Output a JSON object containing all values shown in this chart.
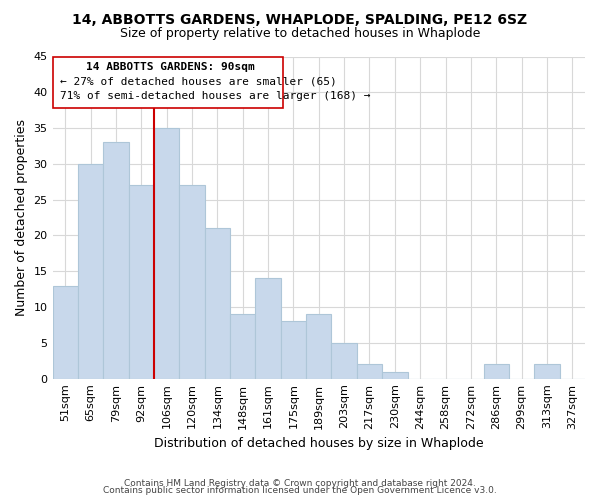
{
  "title": "14, ABBOTTS GARDENS, WHAPLODE, SPALDING, PE12 6SZ",
  "subtitle": "Size of property relative to detached houses in Whaplode",
  "xlabel": "Distribution of detached houses by size in Whaplode",
  "ylabel": "Number of detached properties",
  "bar_color": "#c8d8eb",
  "bar_edge_color": "#aec6d8",
  "bins": [
    "51sqm",
    "65sqm",
    "79sqm",
    "92sqm",
    "106sqm",
    "120sqm",
    "134sqm",
    "148sqm",
    "161sqm",
    "175sqm",
    "189sqm",
    "203sqm",
    "217sqm",
    "230sqm",
    "244sqm",
    "258sqm",
    "272sqm",
    "286sqm",
    "299sqm",
    "313sqm",
    "327sqm"
  ],
  "values": [
    13,
    30,
    33,
    27,
    35,
    27,
    21,
    9,
    14,
    8,
    9,
    5,
    2,
    1,
    0,
    0,
    0,
    2,
    0,
    2,
    0
  ],
  "ylim": [
    0,
    45
  ],
  "yticks": [
    0,
    5,
    10,
    15,
    20,
    25,
    30,
    35,
    40,
    45
  ],
  "vline_bin": 3.5,
  "marker_label": "14 ABBOTTS GARDENS: 90sqm",
  "annotation_smaller": "← 27% of detached houses are smaller (65)",
  "annotation_larger": "71% of semi-detached houses are larger (168) →",
  "vline_color": "#cc0000",
  "box_color": "#ffffff",
  "box_edge_color": "#cc0000",
  "footer1": "Contains HM Land Registry data © Crown copyright and database right 2024.",
  "footer2": "Contains public sector information licensed under the Open Government Licence v3.0.",
  "background_color": "#ffffff",
  "grid_color": "#d8d8d8"
}
